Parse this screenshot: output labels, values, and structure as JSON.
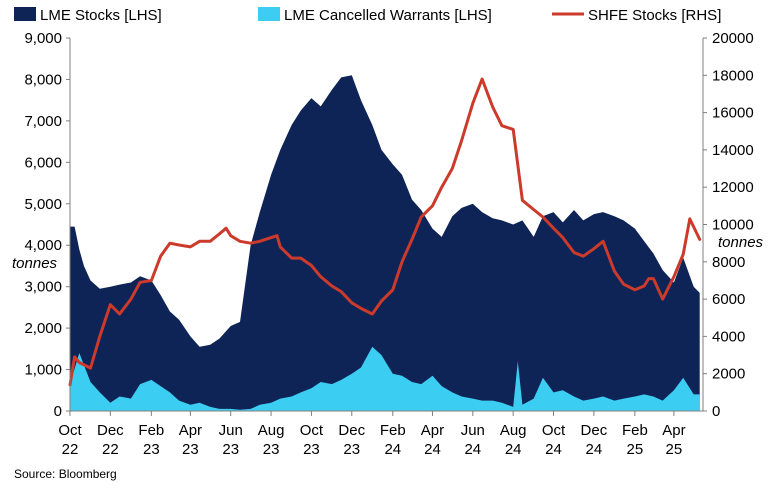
{
  "chart_data": {
    "type": "area",
    "colors": {
      "lme_stocks": "#0f2456",
      "lme_cancelled": "#3ccdf3",
      "shfe_stocks": "#cc3a2b"
    },
    "legend": [
      {
        "key": "lme_stocks",
        "label": "LME Stocks [LHS]",
        "marker": "area"
      },
      {
        "key": "lme_cancelled",
        "label": "LME Cancelled Warrants [LHS]",
        "marker": "area"
      },
      {
        "key": "shfe_stocks",
        "label": "SHFE Stocks [RHS]",
        "marker": "line"
      }
    ],
    "legend_position": "top",
    "left_axis": {
      "ylim": [
        0,
        9000
      ],
      "ticks": [
        "0",
        "1,000",
        "2,000",
        "3,000",
        "4,000",
        "5,000",
        "6,000",
        "7,000",
        "8,000",
        "9,000"
      ],
      "unit": "tonnes"
    },
    "right_axis": {
      "ylim": [
        0,
        20000
      ],
      "ticks": [
        "0",
        "2000",
        "4000",
        "6000",
        "8000",
        "10000",
        "12000",
        "14000",
        "16000",
        "18000",
        "20000"
      ],
      "unit": "tonnes"
    },
    "x_axis": {
      "range": [
        "2022-10-01",
        "2025-05-15"
      ],
      "ticks": [
        {
          "date": "2022-10-01",
          "label": [
            "Oct",
            "22"
          ]
        },
        {
          "date": "2022-12-01",
          "label": [
            "Dec",
            "22"
          ]
        },
        {
          "date": "2023-02-01",
          "label": [
            "Feb",
            "23"
          ]
        },
        {
          "date": "2023-04-01",
          "label": [
            "Apr",
            "23"
          ]
        },
        {
          "date": "2023-06-01",
          "label": [
            "Jun",
            "23"
          ]
        },
        {
          "date": "2023-08-01",
          "label": [
            "Aug",
            "23"
          ]
        },
        {
          "date": "2023-10-01",
          "label": [
            "Oct",
            "23"
          ]
        },
        {
          "date": "2023-12-01",
          "label": [
            "Dec",
            "23"
          ]
        },
        {
          "date": "2024-02-01",
          "label": [
            "Feb",
            "24"
          ]
        },
        {
          "date": "2024-04-01",
          "label": [
            "Apr",
            "24"
          ]
        },
        {
          "date": "2024-06-01",
          "label": [
            "Jun",
            "24"
          ]
        },
        {
          "date": "2024-08-01",
          "label": [
            "Aug",
            "24"
          ]
        },
        {
          "date": "2024-10-01",
          "label": [
            "Oct",
            "24"
          ]
        },
        {
          "date": "2024-12-01",
          "label": [
            "Dec",
            "24"
          ]
        },
        {
          "date": "2025-02-01",
          "label": [
            "Feb",
            "25"
          ]
        },
        {
          "date": "2025-04-01",
          "label": [
            "Apr",
            "25"
          ]
        }
      ]
    },
    "grid": false,
    "series": [
      {
        "key": "lme_stocks",
        "type": "area",
        "axis": "left",
        "x": [
          "2022-10-01",
          "2022-10-08",
          "2022-10-15",
          "2022-10-22",
          "2022-11-01",
          "2022-11-15",
          "2022-12-01",
          "2022-12-15",
          "2023-01-01",
          "2023-01-15",
          "2023-02-01",
          "2023-02-15",
          "2023-03-01",
          "2023-03-15",
          "2023-04-01",
          "2023-04-15",
          "2023-05-01",
          "2023-05-15",
          "2023-06-01",
          "2023-06-15",
          "2023-07-01",
          "2023-07-15",
          "2023-08-01",
          "2023-08-15",
          "2023-09-01",
          "2023-09-15",
          "2023-10-01",
          "2023-10-15",
          "2023-11-01",
          "2023-11-15",
          "2023-12-01",
          "2023-12-08",
          "2023-12-15",
          "2024-01-01",
          "2024-01-15",
          "2024-02-01",
          "2024-02-15",
          "2024-03-01",
          "2024-03-15",
          "2024-04-01",
          "2024-04-15",
          "2024-05-01",
          "2024-05-15",
          "2024-06-01",
          "2024-06-15",
          "2024-07-01",
          "2024-07-15",
          "2024-08-01",
          "2024-08-15",
          "2024-09-01",
          "2024-09-15",
          "2024-10-01",
          "2024-10-15",
          "2024-11-01",
          "2024-11-15",
          "2024-12-01",
          "2024-12-15",
          "2025-01-01",
          "2025-01-15",
          "2025-02-01",
          "2025-02-15",
          "2025-03-01",
          "2025-03-15",
          "2025-04-01",
          "2025-04-15",
          "2025-05-01",
          "2025-05-10"
        ],
        "y": [
          4450,
          4450,
          3900,
          3500,
          3150,
          2950,
          3000,
          3050,
          3100,
          3250,
          3150,
          2800,
          2400,
          2200,
          1800,
          1550,
          1600,
          1750,
          2050,
          2150,
          4000,
          4800,
          5700,
          6300,
          6900,
          7250,
          7550,
          7350,
          7750,
          8050,
          8100,
          7800,
          7500,
          6900,
          6300,
          5950,
          5700,
          5100,
          4850,
          4400,
          4200,
          4700,
          4900,
          5000,
          4800,
          4650,
          4600,
          4500,
          4600,
          4200,
          4700,
          4800,
          4550,
          4850,
          4600,
          4750,
          4800,
          4700,
          4600,
          4400,
          4100,
          3800,
          3400,
          3100,
          3700,
          3000,
          2850
        ]
      },
      {
        "key": "lme_cancelled",
        "type": "area",
        "axis": "left",
        "x": [
          "2022-10-01",
          "2022-10-15",
          "2022-11-01",
          "2022-11-15",
          "2022-12-01",
          "2022-12-15",
          "2023-01-01",
          "2023-01-15",
          "2023-02-01",
          "2023-02-15",
          "2023-03-01",
          "2023-03-15",
          "2023-04-01",
          "2023-04-15",
          "2023-05-01",
          "2023-05-15",
          "2023-06-01",
          "2023-06-15",
          "2023-07-01",
          "2023-07-15",
          "2023-08-01",
          "2023-08-15",
          "2023-09-01",
          "2023-09-15",
          "2023-10-01",
          "2023-10-15",
          "2023-11-01",
          "2023-11-15",
          "2023-12-01",
          "2023-12-15",
          "2024-01-01",
          "2024-01-15",
          "2024-02-01",
          "2024-02-15",
          "2024-03-01",
          "2024-03-15",
          "2024-04-01",
          "2024-04-15",
          "2024-05-01",
          "2024-05-15",
          "2024-06-01",
          "2024-06-15",
          "2024-07-01",
          "2024-07-15",
          "2024-08-01",
          "2024-08-08",
          "2024-08-15",
          "2024-09-01",
          "2024-09-15",
          "2024-10-01",
          "2024-10-15",
          "2024-11-01",
          "2024-11-15",
          "2024-12-01",
          "2024-12-15",
          "2025-01-01",
          "2025-01-15",
          "2025-02-01",
          "2025-02-15",
          "2025-03-01",
          "2025-03-15",
          "2025-04-01",
          "2025-04-15",
          "2025-05-01",
          "2025-05-10"
        ],
        "y": [
          650,
          1400,
          700,
          450,
          200,
          350,
          300,
          650,
          750,
          600,
          450,
          250,
          150,
          200,
          100,
          50,
          50,
          30,
          50,
          150,
          200,
          300,
          350,
          450,
          550,
          700,
          650,
          750,
          900,
          1050,
          1550,
          1350,
          900,
          850,
          700,
          650,
          850,
          600,
          450,
          350,
          300,
          250,
          250,
          200,
          100,
          1200,
          150,
          300,
          800,
          450,
          500,
          350,
          250,
          300,
          350,
          250,
          300,
          350,
          400,
          350,
          250,
          500,
          800,
          400,
          400
        ]
      },
      {
        "key": "shfe_stocks",
        "type": "line",
        "axis": "right",
        "x": [
          "2022-10-01",
          "2022-10-08",
          "2022-10-15",
          "2022-11-01",
          "2022-11-15",
          "2022-12-01",
          "2022-12-15",
          "2023-01-01",
          "2023-01-15",
          "2023-02-01",
          "2023-02-15",
          "2023-03-01",
          "2023-03-15",
          "2023-04-01",
          "2023-04-15",
          "2023-05-01",
          "2023-05-15",
          "2023-05-25",
          "2023-06-01",
          "2023-06-15",
          "2023-07-01",
          "2023-07-15",
          "2023-08-01",
          "2023-08-10",
          "2023-08-15",
          "2023-09-01",
          "2023-09-15",
          "2023-10-01",
          "2023-10-15",
          "2023-11-01",
          "2023-11-15",
          "2023-12-01",
          "2023-12-15",
          "2024-01-01",
          "2024-01-15",
          "2024-02-01",
          "2024-02-15",
          "2024-03-01",
          "2024-03-15",
          "2024-04-01",
          "2024-04-15",
          "2024-05-01",
          "2024-05-15",
          "2024-06-01",
          "2024-06-15",
          "2024-07-01",
          "2024-07-15",
          "2024-08-01",
          "2024-08-15",
          "2024-09-01",
          "2024-09-15",
          "2024-10-01",
          "2024-10-15",
          "2024-11-01",
          "2024-11-15",
          "2024-12-01",
          "2024-12-15",
          "2025-01-01",
          "2025-01-15",
          "2025-02-01",
          "2025-02-15",
          "2025-02-22",
          "2025-03-01",
          "2025-03-15",
          "2025-04-01",
          "2025-04-15",
          "2025-04-25",
          "2025-05-10"
        ],
        "y": [
          1400,
          2900,
          2600,
          2300,
          4000,
          5700,
          5200,
          6000,
          6900,
          7000,
          8300,
          9000,
          8900,
          8800,
          9100,
          9100,
          9500,
          9800,
          9400,
          9100,
          9000,
          9100,
          9300,
          9400,
          8800,
          8200,
          8200,
          7800,
          7200,
          6700,
          6400,
          5800,
          5500,
          5200,
          5900,
          6500,
          8000,
          9200,
          10400,
          11000,
          12000,
          13000,
          14500,
          16500,
          17800,
          16300,
          15300,
          15100,
          11300,
          10800,
          10400,
          9800,
          9300,
          8500,
          8300,
          8700,
          9100,
          7500,
          6800,
          6500,
          6700,
          7100,
          7100,
          6000,
          7200,
          8400,
          10300,
          9200
        ]
      }
    ],
    "source": "Source: Bloomberg"
  }
}
